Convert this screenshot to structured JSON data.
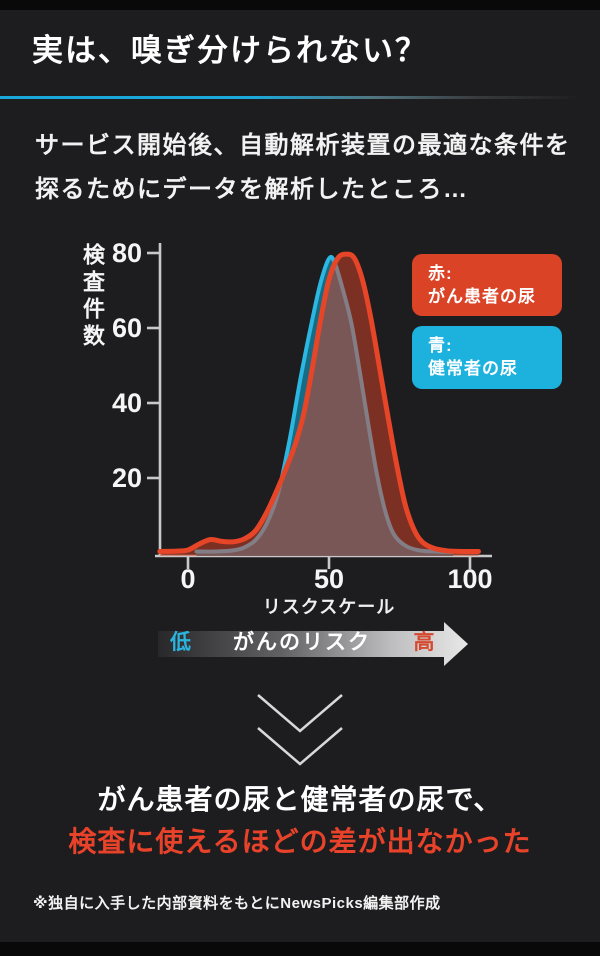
{
  "header": {
    "title": "実は、嗅ぎ分けられない？",
    "subtitle_line1": "サービス開始後、自動解析装置の最適な条件を",
    "subtitle_line2": "探るためにデータを解析したところ…"
  },
  "chart_data": {
    "type": "area",
    "ylabel": "検査件数",
    "xlabel": "リスクスケール",
    "x_ticks": [
      0,
      50,
      100
    ],
    "y_ticks": [
      20,
      40,
      60,
      80
    ],
    "xlim": [
      -10,
      107
    ],
    "ylim": [
      0,
      84
    ],
    "grid": false,
    "legend_position": "upper-right",
    "series": [
      {
        "name": "青: 健常者の尿",
        "color": "#2bb7e2",
        "fill": "rgba(21,113,141,0.93)",
        "points": [
          [
            3,
            0.4
          ],
          [
            10,
            0.4
          ],
          [
            16,
            0.7
          ],
          [
            20,
            1.5
          ],
          [
            24,
            3.5
          ],
          [
            28,
            8
          ],
          [
            32,
            16
          ],
          [
            36,
            30
          ],
          [
            40,
            47
          ],
          [
            44,
            62
          ],
          [
            47,
            72
          ],
          [
            50,
            78.5
          ],
          [
            52,
            77.5
          ],
          [
            55,
            70
          ],
          [
            58,
            61
          ],
          [
            61,
            48
          ],
          [
            64,
            34
          ],
          [
            67,
            21
          ],
          [
            70,
            11
          ],
          [
            73,
            5
          ],
          [
            77,
            2
          ],
          [
            82,
            0.7
          ],
          [
            88,
            0.4
          ],
          [
            94,
            0.3
          ]
        ]
      },
      {
        "name": "赤: がん患者の尿",
        "color": "#e64527",
        "fill": "rgba(220,67,39,0.5)",
        "points": [
          [
            -10,
            0.4
          ],
          [
            -4,
            0.5
          ],
          [
            0,
            0.8
          ],
          [
            4,
            2.4
          ],
          [
            8,
            3.6
          ],
          [
            12,
            3.1
          ],
          [
            16,
            3
          ],
          [
            20,
            3.8
          ],
          [
            24,
            6
          ],
          [
            28,
            11
          ],
          [
            32,
            17.5
          ],
          [
            35,
            23
          ],
          [
            38,
            29
          ],
          [
            41,
            37
          ],
          [
            44,
            49
          ],
          [
            47,
            62
          ],
          [
            50,
            73
          ],
          [
            53,
            78.5
          ],
          [
            56,
            79.7
          ],
          [
            59,
            78.6
          ],
          [
            62,
            72.5
          ],
          [
            65,
            62
          ],
          [
            68,
            49
          ],
          [
            71,
            36
          ],
          [
            74,
            23.5
          ],
          [
            77,
            13
          ],
          [
            80,
            6.5
          ],
          [
            83,
            3
          ],
          [
            87,
            1.3
          ],
          [
            92,
            0.6
          ],
          [
            98,
            0.4
          ],
          [
            103,
            0.4
          ]
        ]
      }
    ]
  },
  "legend": [
    {
      "line1": "赤:",
      "line2": "がん患者の尿",
      "bg": "#db4327"
    },
    {
      "line1": "青:",
      "line2": "健常者の尿",
      "bg": "#1db1de"
    }
  ],
  "risk_arrow": {
    "low": "低",
    "label": "がんのリスク",
    "high": "高"
  },
  "conclusion": {
    "line1": "がん患者の尿と健常者の尿で、",
    "line2": "検査に使えるほどの差が出なかった"
  },
  "footer": {
    "text": "※独自に入手した内部資料をもとにNewsPicks編集部作成"
  },
  "colors": {
    "background": "#1d1d1f",
    "edge_strip": "#090909",
    "accent_cyan": "#1db1de",
    "accent_red": "#db4327",
    "conclusion_red": "#e8432a",
    "axis": "#c9c9c9",
    "arrow_low_cyan": "#2ab5e0",
    "arrow_high_red": "#d7492e"
  }
}
